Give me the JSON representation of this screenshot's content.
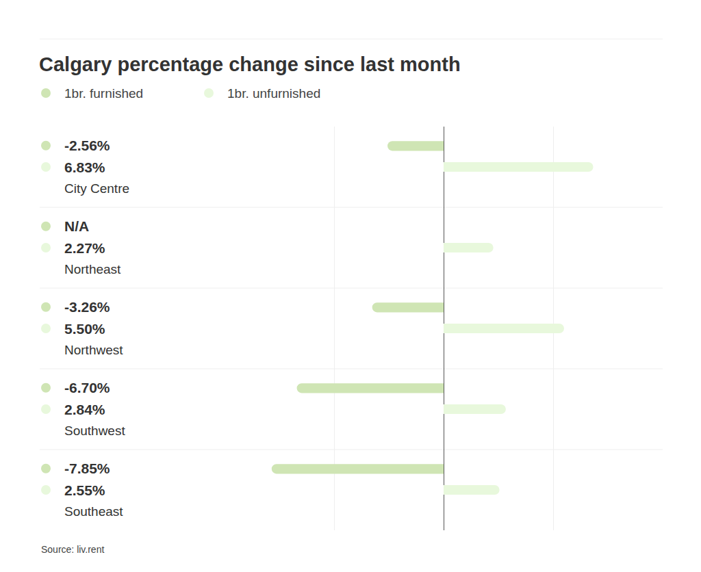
{
  "chart_data": {
    "type": "bar",
    "orientation": "horizontal",
    "title": "Calgary percentage change since last month",
    "source": "Source: liv.rent",
    "categories": [
      "City Centre",
      "Northeast",
      "Northwest",
      "Southwest",
      "Southeast"
    ],
    "series": [
      {
        "name": "1br. furnished",
        "color": "#cfe5b4",
        "values": [
          -2.56,
          null,
          -3.26,
          -6.7,
          -7.85
        ],
        "value_labels": [
          "-2.56%",
          "N/A",
          "-3.26%",
          "-6.70%",
          "-7.85%"
        ]
      },
      {
        "name": "1br. unfurnished",
        "color": "#e8f8dc",
        "values": [
          6.83,
          2.27,
          5.5,
          2.84,
          2.55
        ],
        "value_labels": [
          "6.83%",
          "2.27%",
          "5.50%",
          "2.84%",
          "2.55%"
        ]
      }
    ],
    "xlim": [
      -10,
      10
    ],
    "xticks": [
      -10,
      -5,
      0,
      5,
      10
    ],
    "grid": true,
    "data_labels": true,
    "tick_labels": false
  }
}
